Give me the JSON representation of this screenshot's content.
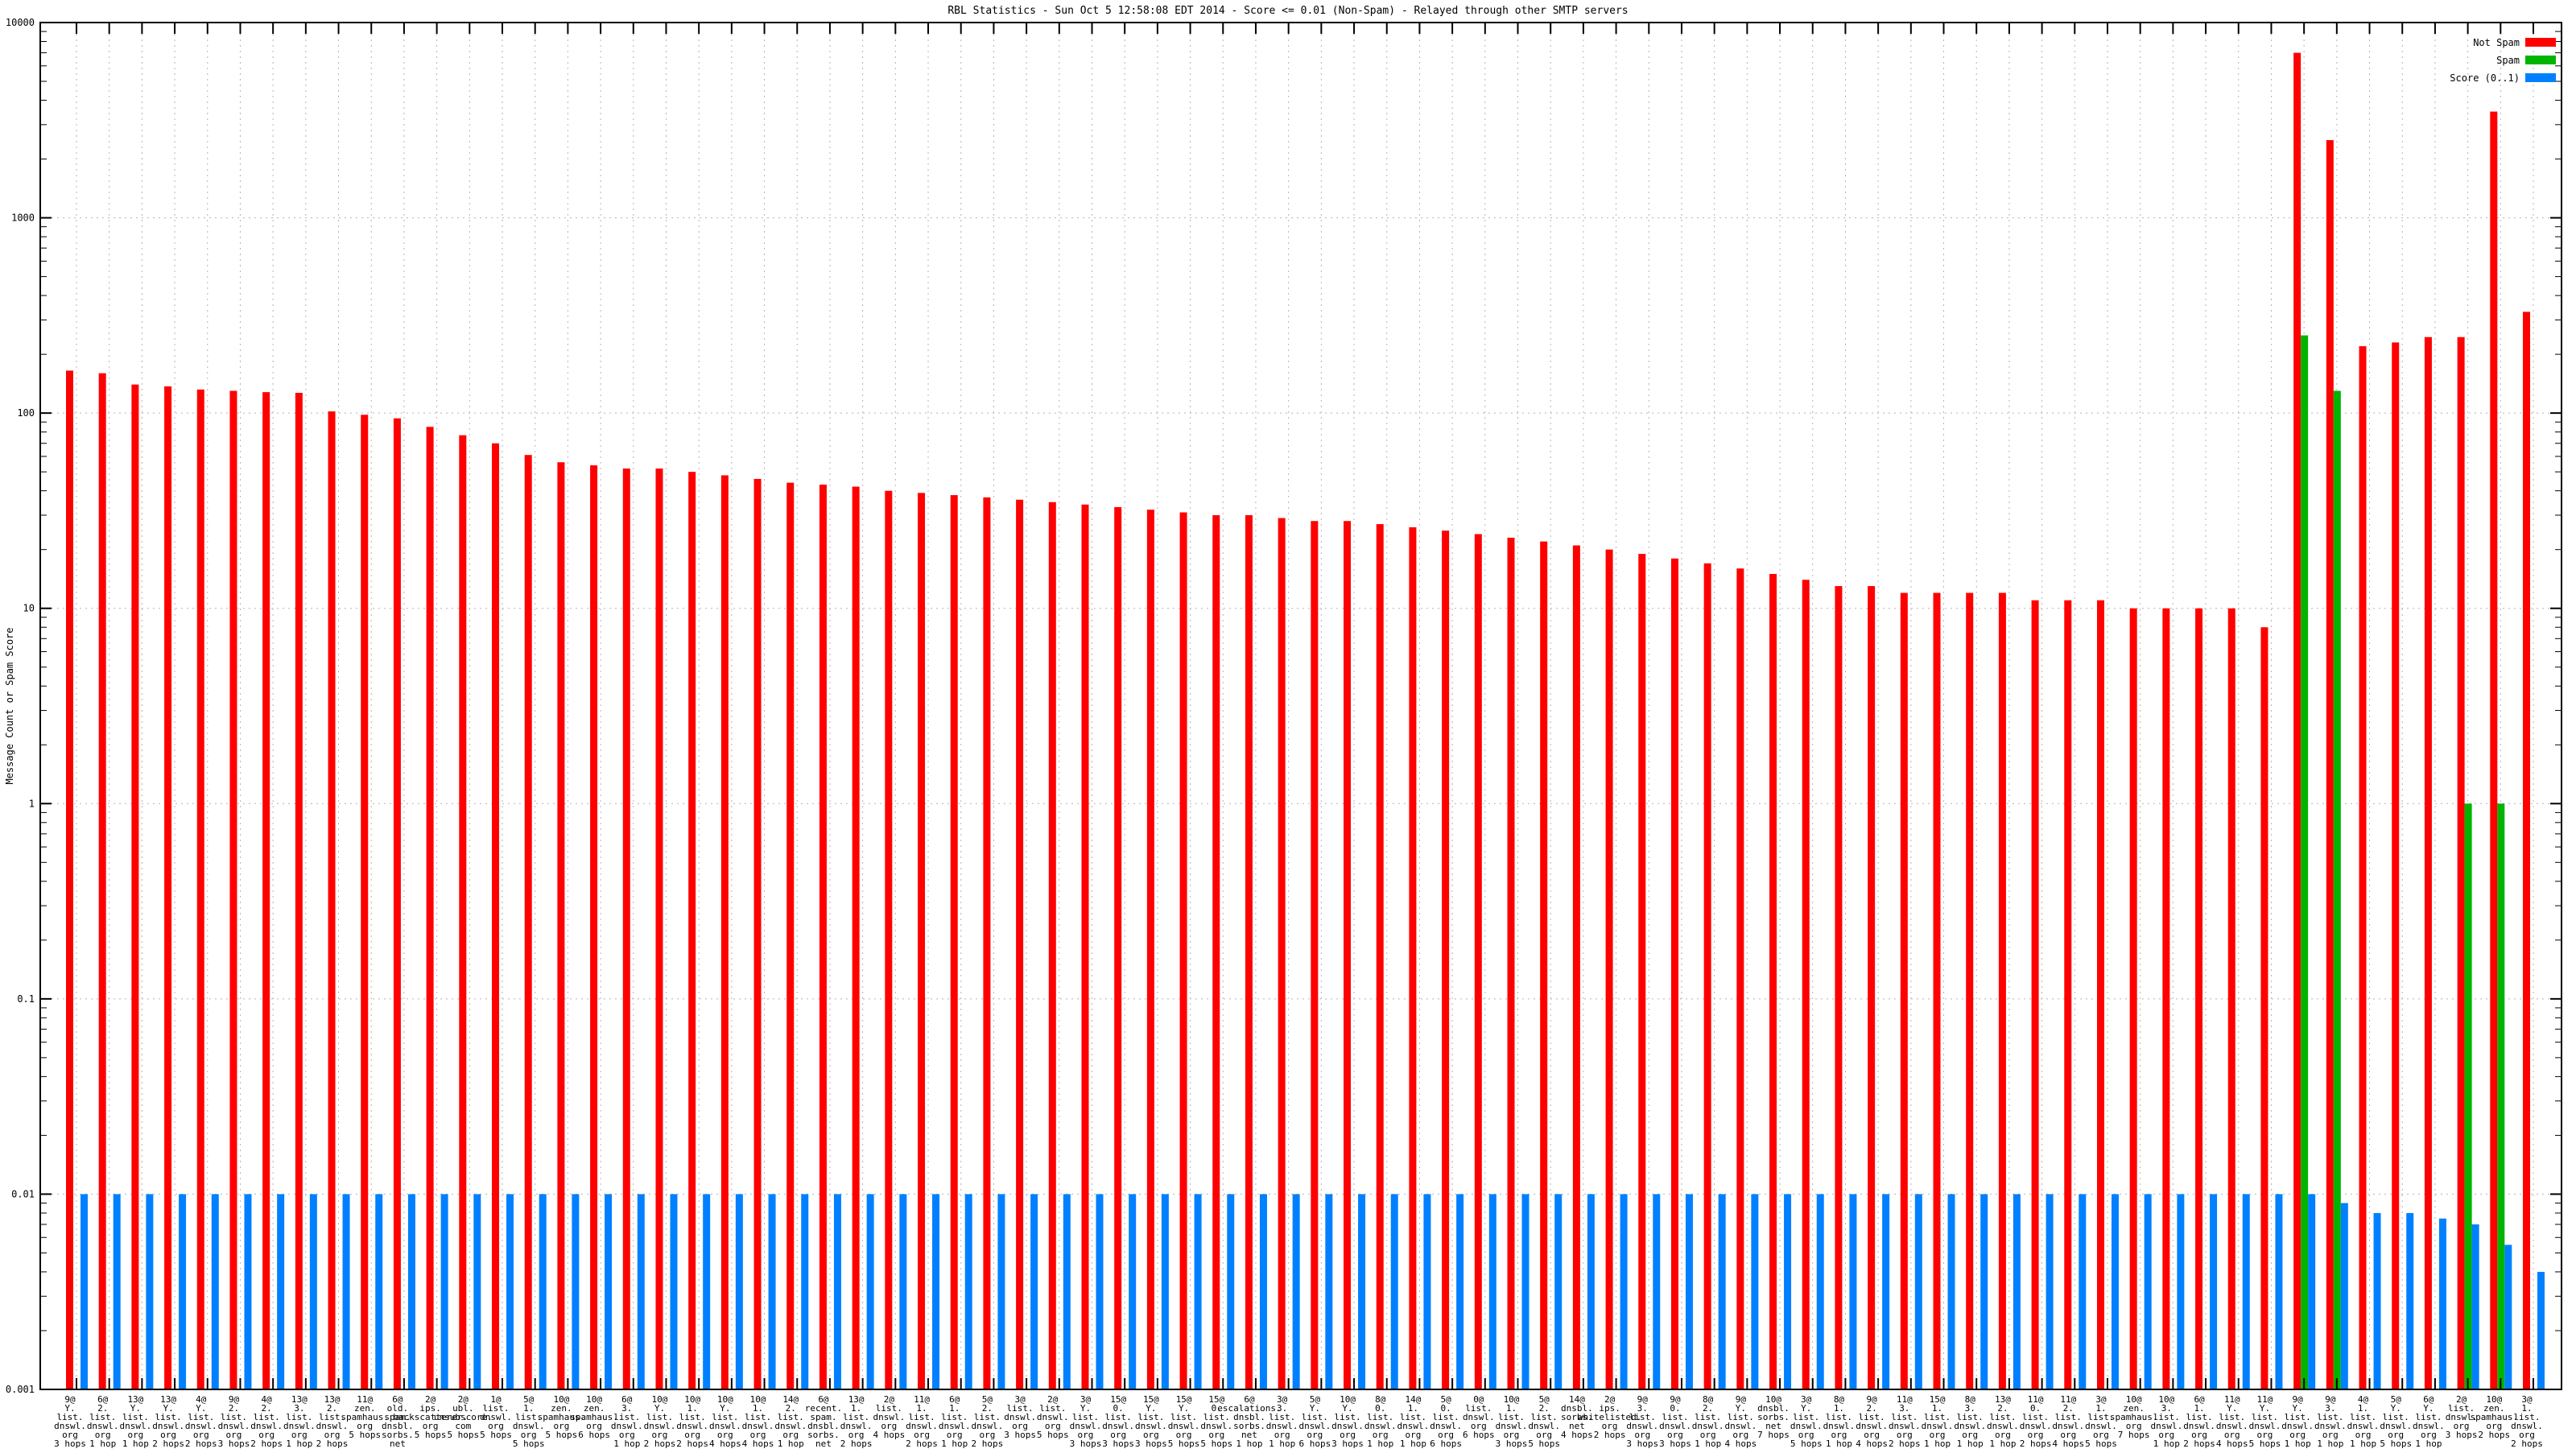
{
  "title": "RBL Statistics - Sun Oct  5 12:58:08 EDT 2014 - Score <= 0.01 (Non-Spam) - Relayed through other SMTP servers",
  "y_axis": {
    "label": "Message Count or Spam Score",
    "scale": "log",
    "min": 0.001,
    "max": 10000,
    "ticks": [
      {
        "v": 10000,
        "label": "10000"
      },
      {
        "v": 1000,
        "label": "1000"
      },
      {
        "v": 100,
        "label": "100"
      },
      {
        "v": 10,
        "label": "10"
      },
      {
        "v": 1,
        "label": "1"
      },
      {
        "v": 0.1,
        "label": "0.1"
      },
      {
        "v": 0.01,
        "label": "0.01"
      },
      {
        "v": 0.001,
        "label": "0.001"
      }
    ]
  },
  "legend": [
    {
      "label": "Not Spam",
      "color": "#ff0000"
    },
    {
      "label": "Spam",
      "color": "#00b400"
    },
    {
      "label": "Score (0..1)",
      "color": "#0080ff"
    }
  ],
  "colors": {
    "not_spam": "#ff0000",
    "spam": "#00b400",
    "score": "#0080ff",
    "grid": "#b4b4b4",
    "axis": "#000000"
  },
  "chart_data": {
    "type": "bar",
    "title": "RBL Statistics - Sun Oct  5 12:58:08 EDT 2014 - Score <= 0.01 (Non-Spam) - Relayed through other SMTP servers",
    "xlabel": "",
    "ylabel": "Message Count or Spam Score",
    "ylim": [
      0.001,
      10000
    ],
    "grid": true,
    "legend_position": "top-right",
    "series_names": [
      "Not Spam",
      "Spam",
      "Score (0..1)"
    ],
    "series_keys_note": "l = x label lines, r = Not Spam count, g = Spam count (null if absent), b = Score (0..1)",
    "groups": [
      {
        "l": [
          "9@",
          "Y.",
          "list.",
          "dnswl.",
          "org",
          "3 hops"
        ],
        "r": 165,
        "g": null,
        "b": 0.01
      },
      {
        "l": [
          "6@",
          "2.",
          "list.",
          "dnswl.",
          "org",
          "1 hop"
        ],
        "r": 160,
        "g": null,
        "b": 0.01
      },
      {
        "l": [
          "13@",
          "Y.",
          "list.",
          "dnswl.",
          "org",
          "1 hop"
        ],
        "r": 140,
        "g": null,
        "b": 0.01
      },
      {
        "l": [
          "13@",
          "Y.",
          "list.",
          "dnswl.",
          "org",
          "2 hops"
        ],
        "r": 137,
        "g": null,
        "b": 0.01
      },
      {
        "l": [
          "4@",
          "Y.",
          "list.",
          "dnswl.",
          "org",
          "2 hops"
        ],
        "r": 132,
        "g": null,
        "b": 0.01
      },
      {
        "l": [
          "9@",
          "2.",
          "list.",
          "dnswl.",
          "org",
          "3 hops"
        ],
        "r": 130,
        "g": null,
        "b": 0.01
      },
      {
        "l": [
          "4@",
          "2.",
          "list.",
          "dnswl.",
          "org",
          "2 hops"
        ],
        "r": 128,
        "g": null,
        "b": 0.01
      },
      {
        "l": [
          "13@",
          "3.",
          "list.",
          "dnswl.",
          "org",
          "1 hop"
        ],
        "r": 127,
        "g": null,
        "b": 0.01
      },
      {
        "l": [
          "13@",
          "2.",
          "list.",
          "dnswl.",
          "org",
          "2 hops"
        ],
        "r": 102,
        "g": null,
        "b": 0.01
      },
      {
        "l": [
          "11@",
          "zen.",
          "spamhaus.",
          "org",
          "5 hops"
        ],
        "r": 98,
        "g": null,
        "b": 0.01
      },
      {
        "l": [
          "6@",
          "old.",
          "spam.",
          "dnsbl.",
          "sorbs.",
          "net",
          "5 hops"
        ],
        "r": 94,
        "g": null,
        "b": 0.01
      },
      {
        "l": [
          "2@",
          "ips.",
          "backscatterer.",
          "org",
          "5 hops"
        ],
        "r": 85,
        "g": null,
        "b": 0.01
      },
      {
        "l": [
          "2@",
          "ubl.",
          "unsubscore.",
          "com",
          "5 hops"
        ],
        "r": 77,
        "g": null,
        "b": 0.01
      },
      {
        "l": [
          "1@",
          "list.",
          "dnswl.",
          "org",
          "5 hops"
        ],
        "r": 70,
        "g": null,
        "b": 0.01
      },
      {
        "l": [
          "5@",
          "1.",
          "list.",
          "dnswl.",
          "org",
          "5 hops"
        ],
        "r": 61,
        "g": null,
        "b": 0.01
      },
      {
        "l": [
          "10@",
          "zen.",
          "spamhaus.",
          "org",
          "5 hops"
        ],
        "r": 56,
        "g": null,
        "b": 0.01
      },
      {
        "l": [
          "10@",
          "zen.",
          "spamhaus.",
          "org",
          "6 hops"
        ],
        "r": 54,
        "g": null,
        "b": 0.01
      },
      {
        "l": [
          "6@",
          "3.",
          "list.",
          "dnswl.",
          "org",
          "1 hop"
        ],
        "r": 52,
        "g": null,
        "b": 0.01
      },
      {
        "l": [
          "10@",
          "Y.",
          "list.",
          "dnswl.",
          "org",
          "2 hops"
        ],
        "r": 52,
        "g": null,
        "b": 0.01
      },
      {
        "l": [
          "10@",
          "1.",
          "list.",
          "dnswl.",
          "org",
          "2 hops"
        ],
        "r": 50,
        "g": null,
        "b": 0.01
      },
      {
        "l": [
          "10@",
          "Y.",
          "list.",
          "dnswl.",
          "org",
          "4 hops"
        ],
        "r": 48,
        "g": null,
        "b": 0.01
      },
      {
        "l": [
          "10@",
          "1.",
          "list.",
          "dnswl.",
          "org",
          "4 hops"
        ],
        "r": 46,
        "g": null,
        "b": 0.01
      },
      {
        "l": [
          "14@",
          "2.",
          "list.",
          "dnswl.",
          "org",
          "1 hop"
        ],
        "r": 44,
        "g": null,
        "b": 0.01
      },
      {
        "l": [
          "6@",
          "recent.",
          "spam.",
          "dnsbl.",
          "sorbs.",
          "net",
          "5 hops"
        ],
        "r": 43,
        "g": null,
        "b": 0.01
      },
      {
        "l": [
          "13@",
          "1.",
          "list.",
          "dnswl.",
          "org",
          "2 hops"
        ],
        "r": 42,
        "g": null,
        "b": 0.01
      },
      {
        "l": [
          "2@",
          "list.",
          "dnswl.",
          "org",
          "4 hops"
        ],
        "r": 40,
        "g": null,
        "b": 0.01
      },
      {
        "l": [
          "11@",
          "1.",
          "list.",
          "dnswl.",
          "org",
          "2 hops"
        ],
        "r": 39,
        "g": null,
        "b": 0.01
      },
      {
        "l": [
          "6@",
          "1.",
          "list.",
          "dnswl.",
          "org",
          "1 hop"
        ],
        "r": 38,
        "g": null,
        "b": 0.01
      },
      {
        "l": [
          "5@",
          "2.",
          "list.",
          "dnswl.",
          "org",
          "2 hops"
        ],
        "r": 37,
        "g": null,
        "b": 0.01
      },
      {
        "l": [
          "3@",
          "list.",
          "dnswl.",
          "org",
          "3 hops"
        ],
        "r": 36,
        "g": null,
        "b": 0.01
      },
      {
        "l": [
          "2@",
          "list.",
          "dnswl.",
          "org",
          "5 hops"
        ],
        "r": 35,
        "g": null,
        "b": 0.01
      },
      {
        "l": [
          "3@",
          "Y.",
          "list.",
          "dnswl.",
          "org",
          "3 hops"
        ],
        "r": 34,
        "g": null,
        "b": 0.01
      },
      {
        "l": [
          "15@",
          "0.",
          "list.",
          "dnswl.",
          "org",
          "3 hops"
        ],
        "r": 33,
        "g": null,
        "b": 0.01
      },
      {
        "l": [
          "15@",
          "Y.",
          "list.",
          "dnswl.",
          "org",
          "3 hops"
        ],
        "r": 32,
        "g": null,
        "b": 0.01
      },
      {
        "l": [
          "15@",
          "Y.",
          "list.",
          "dnswl.",
          "org",
          "5 hops"
        ],
        "r": 31,
        "g": null,
        "b": 0.01
      },
      {
        "l": [
          "15@",
          "0.",
          "list.",
          "dnswl.",
          "org",
          "5 hops"
        ],
        "r": 30,
        "g": null,
        "b": 0.01
      },
      {
        "l": [
          "6@",
          "escalations.",
          "dnsbl.",
          "sorbs.",
          "net",
          "1 hop"
        ],
        "r": 30,
        "g": null,
        "b": 0.01
      },
      {
        "l": [
          "3@",
          "3.",
          "list.",
          "dnswl.",
          "org",
          "1 hop"
        ],
        "r": 29,
        "g": null,
        "b": 0.01
      },
      {
        "l": [
          "5@",
          "Y.",
          "list.",
          "dnswl.",
          "org",
          "6 hops"
        ],
        "r": 28,
        "g": null,
        "b": 0.01
      },
      {
        "l": [
          "10@",
          "Y.",
          "list.",
          "dnswl.",
          "org",
          "3 hops"
        ],
        "r": 28,
        "g": null,
        "b": 0.01
      },
      {
        "l": [
          "8@",
          "0.",
          "list.",
          "dnswl.",
          "org",
          "1 hop"
        ],
        "r": 27,
        "g": null,
        "b": 0.01
      },
      {
        "l": [
          "14@",
          "1.",
          "list.",
          "dnswl.",
          "org",
          "1 hop"
        ],
        "r": 26,
        "g": null,
        "b": 0.01
      },
      {
        "l": [
          "5@",
          "0.",
          "list.",
          "dnswl.",
          "org",
          "6 hops"
        ],
        "r": 25,
        "g": null,
        "b": 0.01
      },
      {
        "l": [
          "0@",
          "list.",
          "dnswl.",
          "org",
          "6 hops"
        ],
        "r": 24,
        "g": null,
        "b": 0.01
      },
      {
        "l": [
          "10@",
          "1.",
          "list.",
          "dnswl.",
          "org",
          "3 hops"
        ],
        "r": 23,
        "g": null,
        "b": 0.01
      },
      {
        "l": [
          "5@",
          "2.",
          "list.",
          "dnswl.",
          "org",
          "5 hops"
        ],
        "r": 22,
        "g": null,
        "b": 0.01
      },
      {
        "l": [
          "14@",
          "dnsbl.",
          "sorbs.",
          "net",
          "4 hops"
        ],
        "r": 21,
        "g": null,
        "b": 0.01
      },
      {
        "l": [
          "2@",
          "ips.",
          "whitelisted.",
          "org",
          "2 hops"
        ],
        "r": 20,
        "g": null,
        "b": 0.01
      },
      {
        "l": [
          "9@",
          "3.",
          "list.",
          "dnswl.",
          "org",
          "3 hops"
        ],
        "r": 19,
        "g": null,
        "b": 0.01
      },
      {
        "l": [
          "9@",
          "0.",
          "list.",
          "dnswl.",
          "org",
          "3 hops"
        ],
        "r": 18,
        "g": null,
        "b": 0.01
      },
      {
        "l": [
          "8@",
          "2.",
          "list.",
          "dnswl.",
          "org",
          "1 hop"
        ],
        "r": 17,
        "g": null,
        "b": 0.01
      },
      {
        "l": [
          "9@",
          "Y.",
          "list.",
          "dnswl.",
          "org",
          "4 hops"
        ],
        "r": 16,
        "g": null,
        "b": 0.01
      },
      {
        "l": [
          "10@",
          "dnsbl.",
          "sorbs.",
          "net",
          "7 hops"
        ],
        "r": 15,
        "g": null,
        "b": 0.01
      },
      {
        "l": [
          "3@",
          "Y.",
          "list.",
          "dnswl.",
          "org",
          "5 hops"
        ],
        "r": 14,
        "g": null,
        "b": 0.01
      },
      {
        "l": [
          "8@",
          "1.",
          "list.",
          "dnswl.",
          "org",
          "1 hop"
        ],
        "r": 13,
        "g": null,
        "b": 0.01
      },
      {
        "l": [
          "9@",
          "2.",
          "list.",
          "dnswl.",
          "org",
          "4 hops"
        ],
        "r": 13,
        "g": null,
        "b": 0.01
      },
      {
        "l": [
          "11@",
          "3.",
          "list.",
          "dnswl.",
          "org",
          "2 hops"
        ],
        "r": 12,
        "g": null,
        "b": 0.01
      },
      {
        "l": [
          "15@",
          "1.",
          "list.",
          "dnswl.",
          "org",
          "1 hop"
        ],
        "r": 12,
        "g": null,
        "b": 0.01
      },
      {
        "l": [
          "8@",
          "3.",
          "list.",
          "dnswl.",
          "org",
          "1 hop"
        ],
        "r": 12,
        "g": null,
        "b": 0.01
      },
      {
        "l": [
          "13@",
          "2.",
          "list.",
          "dnswl.",
          "org",
          "1 hop"
        ],
        "r": 12,
        "g": null,
        "b": 0.01
      },
      {
        "l": [
          "11@",
          "0.",
          "list.",
          "dnswl.",
          "org",
          "2 hops"
        ],
        "r": 11,
        "g": null,
        "b": 0.01
      },
      {
        "l": [
          "11@",
          "2.",
          "list.",
          "dnswl.",
          "org",
          "4 hops"
        ],
        "r": 11,
        "g": null,
        "b": 0.01
      },
      {
        "l": [
          "3@",
          "1.",
          "list.",
          "dnswl.",
          "org",
          "5 hops"
        ],
        "r": 11,
        "g": null,
        "b": 0.01
      },
      {
        "l": [
          "10@",
          "zen.",
          "spamhaus.",
          "org",
          "7 hops"
        ],
        "r": 10,
        "g": null,
        "b": 0.01
      },
      {
        "l": [
          "10@",
          "3.",
          "list.",
          "dnswl.",
          "org",
          "1 hop"
        ],
        "r": 10,
        "g": null,
        "b": 0.01
      },
      {
        "l": [
          "6@",
          "1.",
          "list.",
          "dnswl.",
          "org",
          "2 hops"
        ],
        "r": 10,
        "g": null,
        "b": 0.01
      },
      {
        "l": [
          "11@",
          "Y.",
          "list.",
          "dnswl.",
          "org",
          "4 hops"
        ],
        "r": 10,
        "g": null,
        "b": 0.01
      },
      {
        "l": [
          "11@",
          "Y.",
          "list.",
          "dnswl.",
          "org",
          "5 hops"
        ],
        "r": 8,
        "g": null,
        "b": 0.01
      },
      {
        "l": [
          "9@",
          "Y.",
          "list.",
          "dnswl.",
          "org",
          "1 hop"
        ],
        "r": 7000,
        "g": 250,
        "b": 0.01
      },
      {
        "l": [
          "9@",
          "3.",
          "list.",
          "dnswl.",
          "org",
          "1 hop"
        ],
        "r": 2500,
        "g": 130,
        "b": 0.009
      },
      {
        "l": [
          "4@",
          "1.",
          "list.",
          "dnswl.",
          "org",
          "1 hop"
        ],
        "r": 220,
        "g": null,
        "b": 0.008
      },
      {
        "l": [
          "5@",
          "Y.",
          "list.",
          "dnswl.",
          "org",
          "5 hops"
        ],
        "r": 230,
        "g": null,
        "b": 0.008
      },
      {
        "l": [
          "6@",
          "Y.",
          "list.",
          "dnswl.",
          "org",
          "1 hop"
        ],
        "r": 245,
        "g": null,
        "b": 0.0075
      },
      {
        "l": [
          "2@",
          "list.",
          "dnswl.",
          "org",
          "3 hops"
        ],
        "r": 245,
        "g": 1,
        "b": 0.007
      },
      {
        "l": [
          "10@",
          "zen.",
          "spamhaus.",
          "org",
          "2 hops"
        ],
        "r": 3500,
        "g": 1,
        "b": 0.0055
      },
      {
        "l": [
          "3@",
          "1.",
          "list.",
          "dnswl.",
          "org",
          "2 hops"
        ],
        "r": 330,
        "g": null,
        "b": 0.004
      }
    ]
  }
}
